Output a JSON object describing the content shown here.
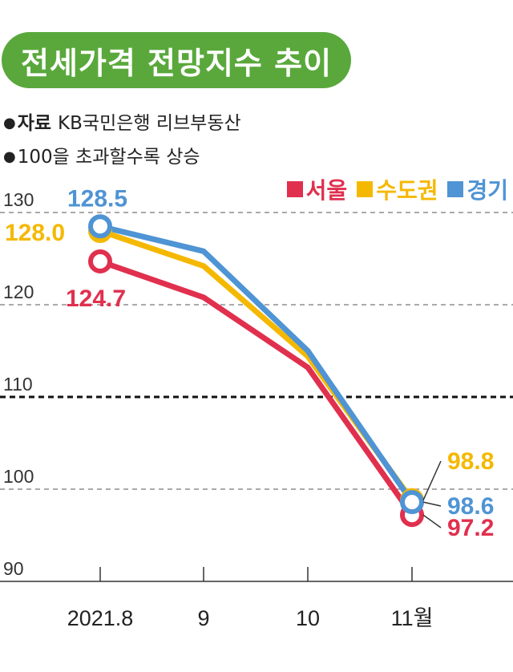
{
  "title": "전세가격 전망지수 추이",
  "notes": {
    "source_label": "자료",
    "source_text": "KB국민은행 리브부동산",
    "explanation": "100을 초과할수록 상승"
  },
  "chart_data": {
    "type": "line",
    "categories": [
      "2021.8",
      "9",
      "10",
      "11월"
    ],
    "ylim": [
      90,
      130
    ],
    "yticks": [
      130,
      120,
      110,
      100,
      90
    ],
    "reference_line": 110,
    "grid": true,
    "legend_position": "top-right",
    "series": [
      {
        "name": "서울",
        "color": "#e0304e",
        "values": [
          124.7,
          120.8,
          113.2,
          97.2
        ]
      },
      {
        "name": "수도권",
        "color": "#f5b800",
        "values": [
          128.0,
          124.2,
          114.4,
          98.8
        ]
      },
      {
        "name": "경기",
        "color": "#4f94d4",
        "values": [
          128.5,
          125.8,
          115.0,
          98.6
        ]
      }
    ],
    "data_labels": {
      "start": [
        "124.7",
        "128.0",
        "128.5"
      ],
      "end": [
        "97.2",
        "98.8",
        "98.6"
      ]
    }
  }
}
